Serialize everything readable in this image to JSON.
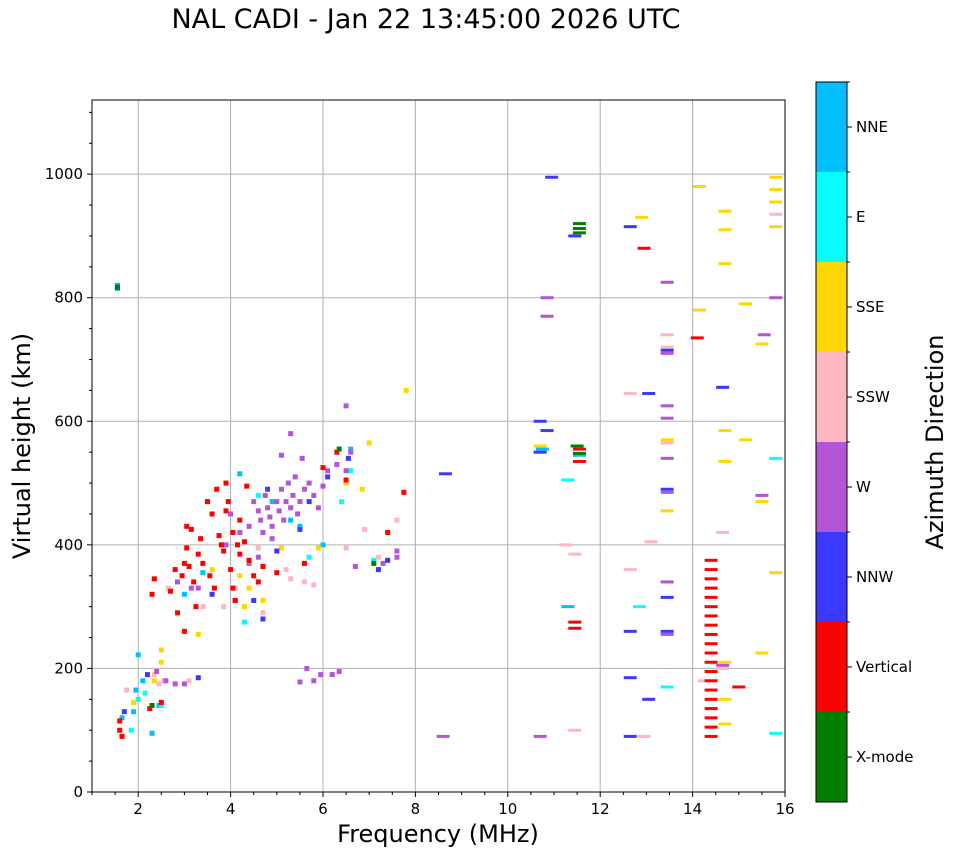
{
  "chart_data": {
    "type": "scatter",
    "title": "NAL CADI - Jan 22 13:45:00 2026 UTC",
    "xlabel": "Frequency (MHz)",
    "ylabel": "Virtual height (km)",
    "xlim": [
      1,
      16
    ],
    "ylim": [
      0,
      1120
    ],
    "grid": true,
    "xticks": [
      2,
      4,
      6,
      8,
      10,
      12,
      14,
      16
    ],
    "yticks": [
      0,
      200,
      400,
      600,
      800,
      1000
    ],
    "colorbar": {
      "label": "Azimuth Direction",
      "categories": [
        {
          "name": "X-mode",
          "color": "#008000"
        },
        {
          "name": "Vertical",
          "color": "#ff0000"
        },
        {
          "name": "NNW",
          "color": "#3a3aff"
        },
        {
          "name": "W",
          "color": "#b455d8"
        },
        {
          "name": "SSW",
          "color": "#ffb6c1"
        },
        {
          "name": "SSE",
          "color": "#ffd700"
        },
        {
          "name": "E",
          "color": "#00ffff"
        },
        {
          "name": "NNE",
          "color": "#00bfff"
        }
      ]
    },
    "series": [
      {
        "name": "NNE",
        "points": [
          [
            1.55,
            820
          ],
          [
            1.55,
            815
          ],
          [
            2.0,
            222
          ],
          [
            1.95,
            165
          ],
          [
            1.9,
            130
          ],
          [
            2.45,
            140
          ],
          [
            2.1,
            180
          ],
          [
            3.0,
            320
          ],
          [
            4.2,
            515
          ],
          [
            4.9,
            470
          ],
          [
            5.3,
            440
          ],
          [
            6.0,
            400
          ],
          [
            6.6,
            555
          ],
          [
            5.5,
            430
          ],
          [
            10.75,
            555
          ],
          [
            11.3,
            505
          ],
          [
            11.3,
            300
          ],
          [
            11.55,
            545
          ],
          [
            1.65,
            120
          ],
          [
            2.3,
            95
          ],
          [
            3.4,
            355
          ]
        ]
      },
      {
        "name": "E",
        "points": [
          [
            2.0,
            150
          ],
          [
            2.15,
            160
          ],
          [
            2.5,
            140
          ],
          [
            4.3,
            275
          ],
          [
            5.7,
            380
          ],
          [
            6.4,
            470
          ],
          [
            6.6,
            520
          ],
          [
            7.1,
            375
          ],
          [
            13.45,
            170
          ],
          [
            12.85,
            300
          ],
          [
            15.8,
            540
          ],
          [
            15.8,
            95
          ],
          [
            11.3,
            505
          ],
          [
            1.85,
            100
          ],
          [
            4.6,
            480
          ]
        ]
      },
      {
        "name": "SSE",
        "points": [
          [
            1.9,
            145
          ],
          [
            2.5,
            230
          ],
          [
            2.5,
            210
          ],
          [
            3.3,
            255
          ],
          [
            4.2,
            350
          ],
          [
            4.4,
            330
          ],
          [
            5.1,
            395
          ],
          [
            5.9,
            395
          ],
          [
            6.5,
            500
          ],
          [
            7.0,
            565
          ],
          [
            7.8,
            650
          ],
          [
            6.85,
            490
          ],
          [
            12.9,
            930
          ],
          [
            13.45,
            570
          ],
          [
            13.45,
            455
          ],
          [
            14.15,
            980
          ],
          [
            14.15,
            780
          ],
          [
            14.7,
            940
          ],
          [
            14.7,
            910
          ],
          [
            14.7,
            855
          ],
          [
            14.7,
            585
          ],
          [
            14.7,
            535
          ],
          [
            14.7,
            210
          ],
          [
            14.7,
            150
          ],
          [
            14.7,
            110
          ],
          [
            15.15,
            790
          ],
          [
            15.15,
            570
          ],
          [
            15.5,
            725
          ],
          [
            15.5,
            470
          ],
          [
            15.5,
            225
          ],
          [
            15.8,
            995
          ],
          [
            15.8,
            975
          ],
          [
            15.8,
            955
          ],
          [
            15.8,
            915
          ],
          [
            15.8,
            355
          ],
          [
            10.7,
            560
          ],
          [
            4.3,
            300
          ],
          [
            3.6,
            360
          ],
          [
            4.7,
            310
          ],
          [
            2.35,
            180
          ]
        ]
      },
      {
        "name": "SSW",
        "points": [
          [
            1.75,
            165
          ],
          [
            2.35,
            190
          ],
          [
            2.45,
            175
          ],
          [
            2.55,
            180
          ],
          [
            3.1,
            180
          ],
          [
            3.85,
            300
          ],
          [
            4.1,
            330
          ],
          [
            4.6,
            395
          ],
          [
            5.3,
            345
          ],
          [
            5.6,
            340
          ],
          [
            5.8,
            335
          ],
          [
            6.9,
            425
          ],
          [
            6.5,
            395
          ],
          [
            7.2,
            380
          ],
          [
            7.6,
            440
          ],
          [
            11.25,
            400
          ],
          [
            11.45,
            385
          ],
          [
            11.45,
            100
          ],
          [
            12.65,
            645
          ],
          [
            12.65,
            360
          ],
          [
            13.1,
            405
          ],
          [
            13.45,
            740
          ],
          [
            13.45,
            720
          ],
          [
            13.45,
            565
          ],
          [
            12.95,
            90
          ],
          [
            14.25,
            180
          ],
          [
            14.65,
            420
          ],
          [
            14.65,
            200
          ],
          [
            15.8,
            935
          ],
          [
            4.7,
            290
          ],
          [
            5.2,
            360
          ],
          [
            3.4,
            300
          ],
          [
            2.65,
            330
          ]
        ]
      },
      {
        "name": "W",
        "points": [
          [
            2.4,
            195
          ],
          [
            2.6,
            180
          ],
          [
            2.8,
            175
          ],
          [
            3.0,
            175
          ],
          [
            3.3,
            330
          ],
          [
            3.9,
            400
          ],
          [
            4.0,
            450
          ],
          [
            4.2,
            420
          ],
          [
            4.4,
            430
          ],
          [
            4.5,
            470
          ],
          [
            4.6,
            455
          ],
          [
            4.65,
            440
          ],
          [
            4.7,
            420
          ],
          [
            4.75,
            480
          ],
          [
            4.8,
            460
          ],
          [
            4.85,
            445
          ],
          [
            4.9,
            430
          ],
          [
            5.0,
            470
          ],
          [
            5.05,
            455
          ],
          [
            5.1,
            490
          ],
          [
            5.15,
            440
          ],
          [
            5.2,
            470
          ],
          [
            5.25,
            500
          ],
          [
            5.3,
            460
          ],
          [
            5.35,
            480
          ],
          [
            5.4,
            510
          ],
          [
            5.45,
            450
          ],
          [
            5.5,
            470
          ],
          [
            5.55,
            540
          ],
          [
            5.6,
            490
          ],
          [
            5.7,
            500
          ],
          [
            5.8,
            480
          ],
          [
            5.9,
            460
          ],
          [
            6.0,
            495
          ],
          [
            6.1,
            520
          ],
          [
            6.3,
            530
          ],
          [
            6.5,
            520
          ],
          [
            6.6,
            550
          ],
          [
            6.5,
            625
          ],
          [
            5.1,
            545
          ],
          [
            5.3,
            580
          ],
          [
            4.9,
            410
          ],
          [
            4.6,
            380
          ],
          [
            4.4,
            370
          ],
          [
            5.5,
            178
          ],
          [
            5.65,
            200
          ],
          [
            5.8,
            180
          ],
          [
            5.95,
            190
          ],
          [
            6.2,
            190
          ],
          [
            6.35,
            195
          ],
          [
            6.7,
            365
          ],
          [
            7.6,
            390
          ],
          [
            7.6,
            380
          ],
          [
            7.3,
            370
          ],
          [
            8.6,
            90
          ],
          [
            10.7,
            90
          ],
          [
            10.85,
            800
          ],
          [
            10.85,
            770
          ],
          [
            13.45,
            825
          ],
          [
            13.45,
            710
          ],
          [
            13.45,
            625
          ],
          [
            13.45,
            605
          ],
          [
            13.45,
            540
          ],
          [
            13.45,
            485
          ],
          [
            13.45,
            340
          ],
          [
            13.45,
            255
          ],
          [
            14.65,
            205
          ],
          [
            15.55,
            740
          ],
          [
            15.5,
            480
          ],
          [
            15.8,
            800
          ],
          [
            2.85,
            340
          ],
          [
            3.15,
            330
          ],
          [
            4.1,
            310
          ]
        ]
      },
      {
        "name": "NNW",
        "points": [
          [
            1.7,
            130
          ],
          [
            2.2,
            190
          ],
          [
            3.6,
            320
          ],
          [
            4.5,
            310
          ],
          [
            4.7,
            280
          ],
          [
            5.0,
            390
          ],
          [
            5.5,
            425
          ],
          [
            6.1,
            510
          ],
          [
            6.55,
            540
          ],
          [
            7.2,
            360
          ],
          [
            7.4,
            375
          ],
          [
            8.65,
            515
          ],
          [
            10.7,
            600
          ],
          [
            10.7,
            550
          ],
          [
            10.85,
            585
          ],
          [
            10.95,
            995
          ],
          [
            11.45,
            900
          ],
          [
            12.65,
            915
          ],
          [
            12.65,
            260
          ],
          [
            12.65,
            185
          ],
          [
            12.65,
            90
          ],
          [
            13.05,
            645
          ],
          [
            13.05,
            150
          ],
          [
            13.45,
            715
          ],
          [
            13.45,
            490
          ],
          [
            13.45,
            315
          ],
          [
            13.45,
            260
          ],
          [
            14.65,
            655
          ],
          [
            4.8,
            490
          ],
          [
            5.7,
            470
          ],
          [
            3.3,
            185
          ]
        ]
      },
      {
        "name": "Vertical",
        "points": [
          [
            1.6,
            115
          ],
          [
            1.6,
            100
          ],
          [
            1.65,
            90
          ],
          [
            2.3,
            320
          ],
          [
            2.35,
            345
          ],
          [
            2.7,
            325
          ],
          [
            2.8,
            360
          ],
          [
            2.95,
            350
          ],
          [
            3.0,
            370
          ],
          [
            3.05,
            395
          ],
          [
            3.1,
            365
          ],
          [
            3.2,
            340
          ],
          [
            3.25,
            300
          ],
          [
            3.05,
            430
          ],
          [
            3.15,
            425
          ],
          [
            3.35,
            410
          ],
          [
            3.5,
            470
          ],
          [
            3.6,
            450
          ],
          [
            3.7,
            490
          ],
          [
            3.75,
            415
          ],
          [
            3.8,
            400
          ],
          [
            3.85,
            390
          ],
          [
            3.9,
            500
          ],
          [
            3.95,
            470
          ],
          [
            4.0,
            360
          ],
          [
            4.05,
            330
          ],
          [
            4.1,
            310
          ],
          [
            4.15,
            400
          ],
          [
            4.2,
            440
          ],
          [
            4.3,
            405
          ],
          [
            4.35,
            495
          ],
          [
            4.4,
            375
          ],
          [
            4.5,
            350
          ],
          [
            4.6,
            340
          ],
          [
            4.2,
            385
          ],
          [
            4.05,
            420
          ],
          [
            3.9,
            455
          ],
          [
            3.3,
            385
          ],
          [
            3.4,
            370
          ],
          [
            3.55,
            350
          ],
          [
            3.65,
            330
          ],
          [
            4.7,
            365
          ],
          [
            5.0,
            355
          ],
          [
            5.6,
            370
          ],
          [
            6.0,
            525
          ],
          [
            6.3,
            550
          ],
          [
            6.5,
            505
          ],
          [
            7.4,
            420
          ],
          [
            7.75,
            485
          ],
          [
            11.45,
            275
          ],
          [
            11.45,
            265
          ],
          [
            11.55,
            555
          ],
          [
            11.55,
            535
          ],
          [
            12.95,
            880
          ],
          [
            14.1,
            735
          ],
          [
            14.4,
            375
          ],
          [
            14.4,
            360
          ],
          [
            14.4,
            345
          ],
          [
            14.4,
            330
          ],
          [
            14.4,
            315
          ],
          [
            14.4,
            300
          ],
          [
            14.4,
            285
          ],
          [
            14.4,
            270
          ],
          [
            14.4,
            255
          ],
          [
            14.4,
            240
          ],
          [
            14.4,
            225
          ],
          [
            14.4,
            210
          ],
          [
            14.4,
            195
          ],
          [
            14.4,
            180
          ],
          [
            14.4,
            165
          ],
          [
            14.4,
            150
          ],
          [
            14.4,
            135
          ],
          [
            14.4,
            120
          ],
          [
            14.4,
            105
          ],
          [
            14.4,
            90
          ],
          [
            15.0,
            170
          ],
          [
            2.5,
            145
          ],
          [
            2.25,
            135
          ],
          [
            2.85,
            290
          ],
          [
            3.0,
            260
          ]
        ]
      },
      {
        "name": "X-mode",
        "points": [
          [
            1.55,
            817
          ],
          [
            2.3,
            140
          ],
          [
            6.35,
            555
          ],
          [
            7.1,
            370
          ],
          [
            11.55,
            920
          ],
          [
            11.55,
            912
          ],
          [
            11.55,
            905
          ],
          [
            11.5,
            560
          ],
          [
            11.55,
            548
          ]
        ]
      }
    ]
  }
}
